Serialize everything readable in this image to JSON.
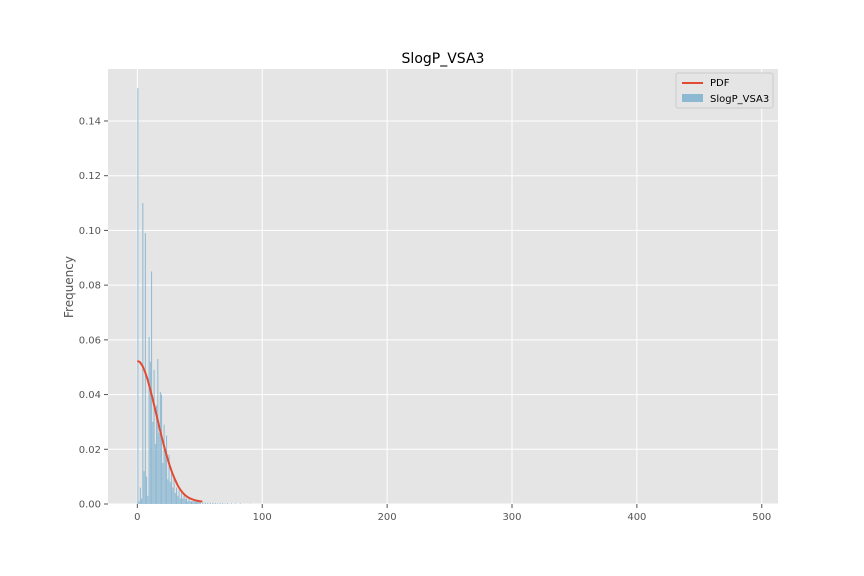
{
  "chart_data": {
    "type": "bar",
    "title": "SlogP_VSA3",
    "xlabel": "",
    "ylabel": "Frequency",
    "xlim": [
      -23.5,
      513
    ],
    "ylim": [
      0,
      0.159
    ],
    "xticks": [
      0,
      100,
      200,
      300,
      400,
      500
    ],
    "yticks": [
      0.0,
      0.02,
      0.04,
      0.06,
      0.08,
      0.1,
      0.12,
      0.14
    ],
    "ytick_labels": [
      "0.00",
      "0.02",
      "0.04",
      "0.06",
      "0.08",
      "0.10",
      "0.12",
      "0.14"
    ],
    "grid": true,
    "legend_position": "top-right",
    "legend": [
      "PDF",
      "SlogP_VSA3"
    ],
    "colors": {
      "background": "#e5e5e5",
      "grid": "#ffffff",
      "bars": "#8cb8d2",
      "pdf_line": "#e24a33"
    },
    "histogram": {
      "name": "SlogP_VSA3",
      "bin_width": 1.0,
      "bins": [
        [
          0,
          0.152
        ],
        [
          1,
          0.001
        ],
        [
          2,
          0.006
        ],
        [
          3,
          0.002
        ],
        [
          4,
          0.11
        ],
        [
          5,
          0.012
        ],
        [
          6,
          0.099
        ],
        [
          7,
          0.01
        ],
        [
          8,
          0.003
        ],
        [
          9,
          0.061
        ],
        [
          10,
          0.052
        ],
        [
          11,
          0.085
        ],
        [
          12,
          0.03
        ],
        [
          13,
          0.049
        ],
        [
          14,
          0.022
        ],
        [
          15,
          0.036
        ],
        [
          16,
          0.053
        ],
        [
          17,
          0.026
        ],
        [
          18,
          0.041
        ],
        [
          19,
          0.04
        ],
        [
          20,
          0.015
        ],
        [
          21,
          0.029
        ],
        [
          22,
          0.02
        ],
        [
          23,
          0.025
        ],
        [
          24,
          0.009
        ],
        [
          25,
          0.018
        ],
        [
          26,
          0.008
        ],
        [
          27,
          0.012
        ],
        [
          28,
          0.006
        ],
        [
          29,
          0.01
        ],
        [
          30,
          0.004
        ],
        [
          31,
          0.006
        ],
        [
          32,
          0.003
        ],
        [
          33,
          0.005
        ],
        [
          34,
          0.002
        ],
        [
          35,
          0.004
        ],
        [
          36,
          0.002
        ],
        [
          37,
          0.003
        ],
        [
          38,
          0.002
        ],
        [
          39,
          0.002
        ],
        [
          40,
          0.001
        ],
        [
          41,
          0.002
        ],
        [
          42,
          0.001
        ],
        [
          43,
          0.001
        ],
        [
          44,
          0.001
        ],
        [
          45,
          0.001
        ],
        [
          46,
          0.001
        ],
        [
          47,
          0.001
        ],
        [
          48,
          0.0008
        ],
        [
          49,
          0.0008
        ],
        [
          50,
          0.0006
        ],
        [
          52,
          0.0006
        ],
        [
          54,
          0.0005
        ],
        [
          56,
          0.0005
        ],
        [
          58,
          0.0004
        ],
        [
          60,
          0.0004
        ],
        [
          62,
          0.0004
        ],
        [
          64,
          0.0003
        ],
        [
          66,
          0.0003
        ],
        [
          68,
          0.0003
        ],
        [
          70,
          0.0002
        ],
        [
          72,
          0.0003
        ],
        [
          75,
          0.0002
        ],
        [
          78,
          0.0002
        ],
        [
          82,
          0.0002
        ],
        [
          90,
          0.0001
        ]
      ]
    },
    "pdf": {
      "name": "PDF",
      "x": [
        0,
        2,
        4,
        6,
        8,
        10,
        12,
        14,
        16,
        18,
        20,
        22,
        24,
        26,
        28,
        30,
        32,
        34,
        36,
        38,
        40,
        42,
        44,
        46,
        48,
        50,
        52
      ],
      "y": [
        0.0523,
        0.0519,
        0.0506,
        0.0485,
        0.0458,
        0.0425,
        0.0389,
        0.0351,
        0.0312,
        0.0273,
        0.0236,
        0.0201,
        0.0169,
        0.0139,
        0.0113,
        0.0091,
        0.0071,
        0.0055,
        0.0043,
        0.0033,
        0.0026,
        0.0021,
        0.0017,
        0.0014,
        0.0012,
        0.001,
        0.0009
      ]
    }
  }
}
